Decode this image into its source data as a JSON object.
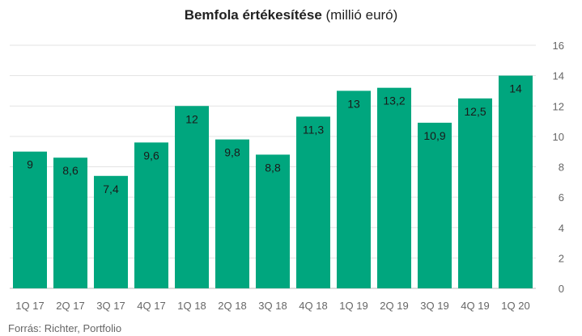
{
  "chart_data": {
    "type": "bar",
    "title_bold": "Bemfola értékesítése",
    "title_rest": " (millió euró)",
    "categories": [
      "1Q 17",
      "2Q 17",
      "3Q 17",
      "4Q 17",
      "1Q 18",
      "2Q 18",
      "3Q 18",
      "4Q 18",
      "1Q 19",
      "2Q 19",
      "3Q 19",
      "4Q 19",
      "1Q 20"
    ],
    "values": [
      9,
      8.6,
      7.4,
      9.6,
      12,
      9.8,
      8.8,
      11.3,
      13,
      13.2,
      10.9,
      12.5,
      14
    ],
    "value_labels": [
      "9",
      "8,6",
      "7,4",
      "9,6",
      "12",
      "9,8",
      "8,8",
      "11,3",
      "13",
      "13,2",
      "10,9",
      "12,5",
      "14"
    ],
    "ylim": [
      0,
      16
    ],
    "yticks": [
      0,
      2,
      4,
      6,
      8,
      10,
      12,
      14,
      16
    ],
    "y_axis_position": "right",
    "grid": true,
    "bar_color": "#00a67e",
    "source": "Forrás: Richter, Portfolio"
  }
}
